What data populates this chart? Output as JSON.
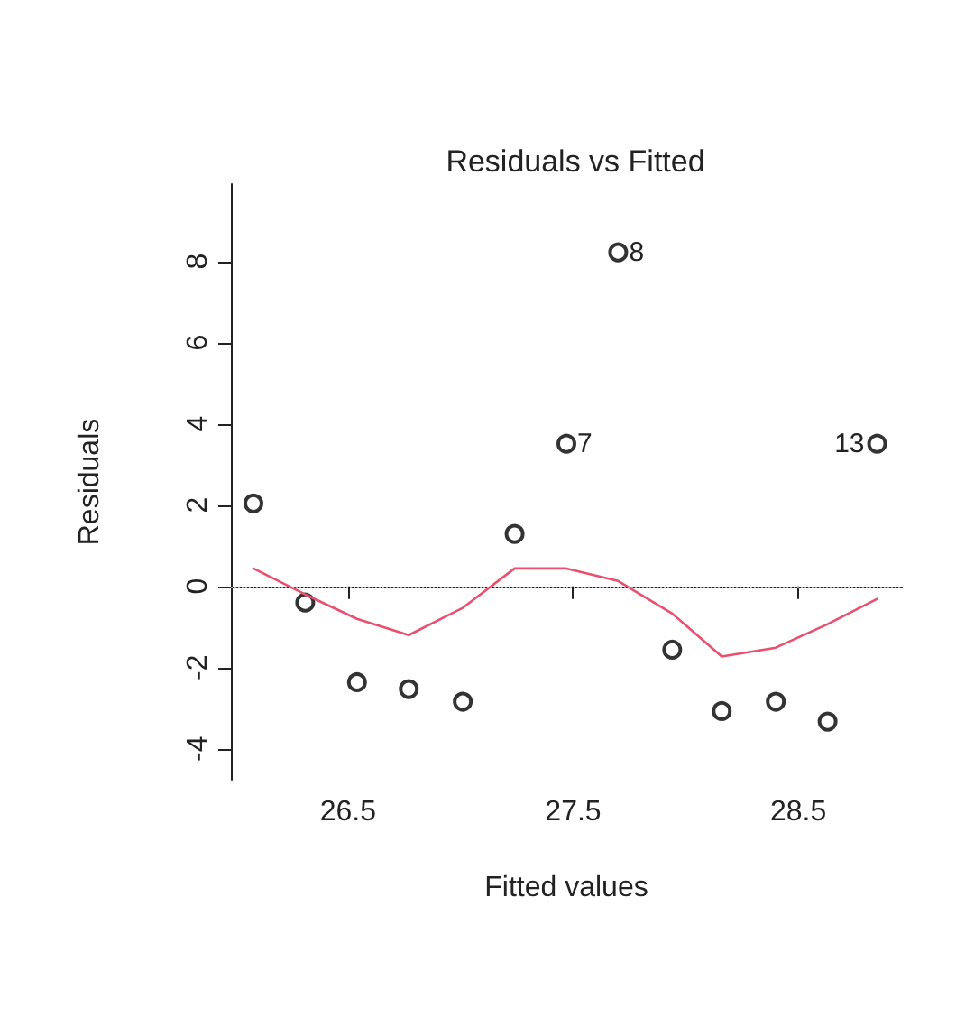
{
  "chart_data": {
    "type": "scatter",
    "title": "Residuals vs Fitted",
    "xlabel": "Fitted values",
    "ylabel": "Residuals",
    "xlim": [
      25.98,
      28.96
    ],
    "xticks": [
      26.5,
      27.5,
      28.5
    ],
    "ylim": [
      -4.76,
      9.9
    ],
    "yticks": [
      -4,
      -2,
      0,
      2,
      4,
      6,
      8
    ],
    "grid": false,
    "marker": "circle",
    "series": [
      {
        "color": "#000000",
        "x": [
          26.08,
          26.31,
          26.54,
          26.77,
          27.01,
          27.24,
          27.47,
          27.7,
          27.94,
          28.16,
          28.4,
          28.63,
          28.85
        ],
        "values": [
          2.04,
          -0.4,
          -2.36,
          -2.53,
          -2.84,
          1.29,
          3.51,
          8.22,
          -1.56,
          -3.07,
          -2.84,
          -3.33,
          3.51
        ]
      },
      {
        "type": "line",
        "color": "#e8506e",
        "marker": "none",
        "line_style": "solid",
        "x": [
          26.08,
          26.31,
          26.54,
          26.77,
          27.01,
          27.24,
          27.47,
          27.7,
          27.94,
          28.16,
          28.4,
          28.63,
          28.85
        ],
        "values": [
          0.44,
          -0.2,
          -0.8,
          -1.2,
          -0.53,
          0.44,
          0.44,
          0.13,
          -0.67,
          -1.73,
          -1.51,
          -0.93,
          -0.31
        ]
      }
    ],
    "ref_lines": [
      {
        "axis": "y",
        "value": 0,
        "color": "#aaaaaa",
        "line_style": "dotted"
      }
    ],
    "annotations": [
      {
        "text": "7",
        "x": 27.47,
        "y": 3.51
      },
      {
        "text": "8",
        "x": 27.7,
        "y": 8.22
      },
      {
        "text": "13",
        "x": 28.85,
        "y": 3.51
      }
    ]
  }
}
